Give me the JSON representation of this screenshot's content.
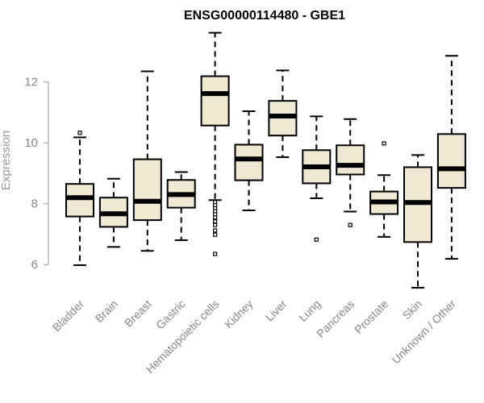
{
  "chart_data": {
    "type": "boxplot",
    "title": "ENSG00000114480 - GBE1",
    "ylabel": "Expression",
    "xlabel": "",
    "ylim": [
      5.0,
      13.9
    ],
    "yticks": [
      6,
      8,
      10,
      12
    ],
    "box_fill": "#efe8d2",
    "box_stroke": "#000000",
    "categories": [
      "Bladder",
      "Brain",
      "Breast",
      "Gastric",
      "Hematopoietic cells",
      "Kidney",
      "Liver",
      "Lung",
      "Pancreas",
      "Prostate",
      "Skin",
      "Unknown / Other"
    ],
    "boxes": [
      {
        "name": "Bladder",
        "min": 5.98,
        "q1": 7.58,
        "median": 8.2,
        "q3": 8.65,
        "max": 10.18,
        "outliers": [
          10.33
        ]
      },
      {
        "name": "Brain",
        "min": 6.58,
        "q1": 7.24,
        "median": 7.67,
        "q3": 8.2,
        "max": 8.82,
        "outliers": []
      },
      {
        "name": "Breast",
        "min": 6.45,
        "q1": 7.46,
        "median": 8.08,
        "q3": 9.46,
        "max": 12.35,
        "outliers": []
      },
      {
        "name": "Gastric",
        "min": 6.8,
        "q1": 7.87,
        "median": 8.3,
        "q3": 8.78,
        "max": 9.04,
        "outliers": []
      },
      {
        "name": "Hematopoietic cells",
        "min": 8.12,
        "q1": 10.57,
        "median": 11.62,
        "q3": 12.19,
        "max": 13.62,
        "outliers": [
          8.05,
          7.95,
          7.85,
          7.75,
          7.65,
          7.55,
          7.42,
          7.3,
          7.12,
          6.98,
          6.35
        ]
      },
      {
        "name": "Kidney",
        "min": 7.78,
        "q1": 8.77,
        "median": 9.47,
        "q3": 9.94,
        "max": 11.04,
        "outliers": []
      },
      {
        "name": "Liver",
        "min": 9.53,
        "q1": 10.24,
        "median": 10.88,
        "q3": 11.38,
        "max": 12.38,
        "outliers": []
      },
      {
        "name": "Lung",
        "min": 8.18,
        "q1": 8.67,
        "median": 9.21,
        "q3": 9.76,
        "max": 10.87,
        "outliers": [
          6.82
        ]
      },
      {
        "name": "Pancreas",
        "min": 7.74,
        "q1": 8.96,
        "median": 9.26,
        "q3": 9.92,
        "max": 10.78,
        "outliers": [
          7.3
        ]
      },
      {
        "name": "Prostate",
        "min": 6.91,
        "q1": 7.66,
        "median": 8.06,
        "q3": 8.4,
        "max": 8.94,
        "outliers": [
          9.98
        ]
      },
      {
        "name": "Skin",
        "min": 5.24,
        "q1": 6.74,
        "median": 8.04,
        "q3": 9.2,
        "max": 9.6,
        "outliers": []
      },
      {
        "name": "Unknown / Other",
        "min": 6.19,
        "q1": 8.52,
        "median": 9.15,
        "q3": 10.29,
        "max": 12.86,
        "outliers": []
      }
    ]
  }
}
